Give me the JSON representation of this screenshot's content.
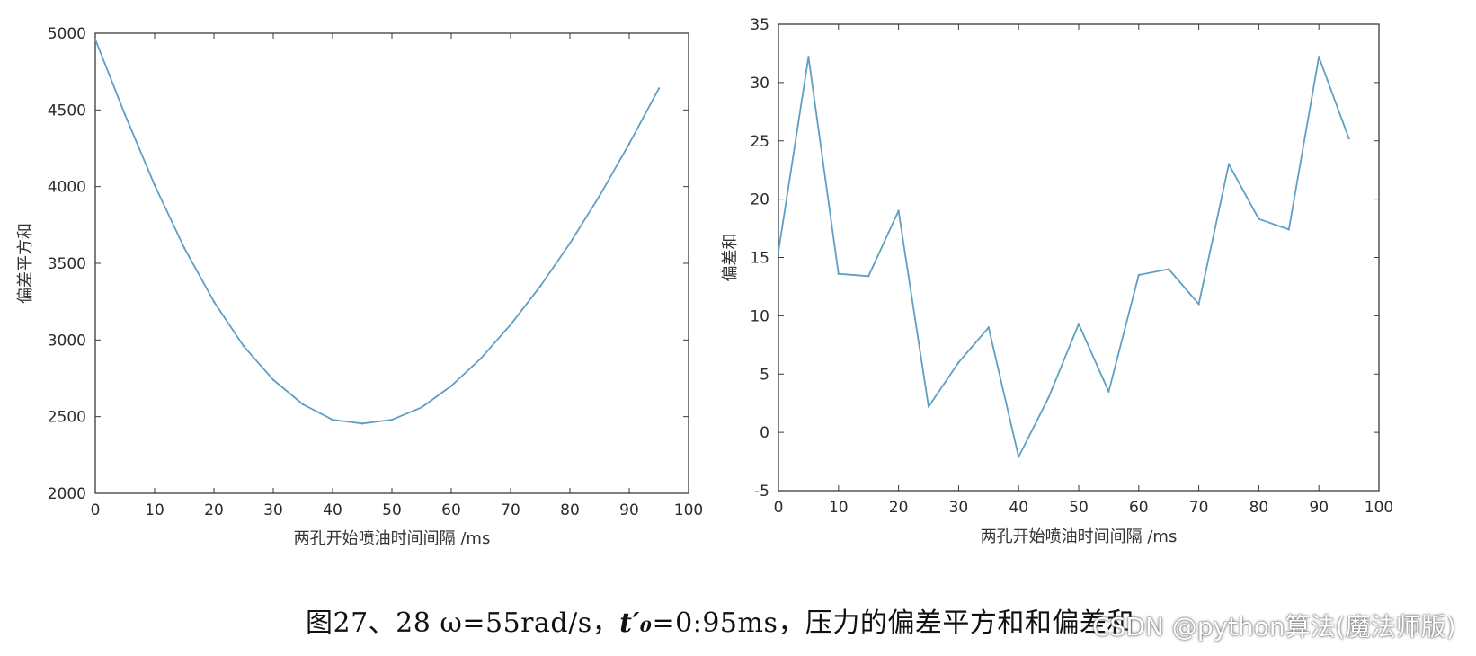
{
  "chart_data": [
    {
      "type": "line",
      "title": "",
      "xlabel": "两孔开始喷油时间间隔 /ms",
      "ylabel": "偏差平方和",
      "xlim": [
        0,
        100
      ],
      "ylim": [
        2000,
        5000
      ],
      "xticks": [
        "0",
        "10",
        "20",
        "30",
        "40",
        "50",
        "60",
        "70",
        "80",
        "90",
        "100"
      ],
      "yticks": [
        "2000",
        "2500",
        "3000",
        "3500",
        "4000",
        "4500",
        "5000"
      ],
      "grid": false,
      "line_color": "#5f9fc4",
      "x": [
        0,
        5,
        10,
        15,
        20,
        25,
        30,
        35,
        40,
        45,
        50,
        55,
        60,
        65,
        70,
        75,
        80,
        85,
        90,
        95
      ],
      "values": [
        4960,
        4470,
        4010,
        3600,
        3250,
        2960,
        2740,
        2580,
        2480,
        2455,
        2480,
        2560,
        2700,
        2880,
        3100,
        3350,
        3630,
        3940,
        4280,
        4640
      ]
    },
    {
      "type": "line",
      "title": "",
      "xlabel": "两孔开始喷油时间间隔 /ms",
      "ylabel": "偏差和",
      "xlim": [
        0,
        100
      ],
      "ylim": [
        -5,
        35
      ],
      "xticks": [
        "0",
        "10",
        "20",
        "30",
        "40",
        "50",
        "60",
        "70",
        "80",
        "90",
        "100"
      ],
      "yticks": [
        "-5",
        "0",
        "5",
        "10",
        "15",
        "20",
        "25",
        "30",
        "35"
      ],
      "grid": false,
      "line_color": "#5f9fc4",
      "x": [
        0,
        5,
        10,
        15,
        20,
        25,
        30,
        35,
        40,
        45,
        50,
        55,
        60,
        65,
        70,
        75,
        80,
        85,
        90,
        95
      ],
      "values": [
        15.5,
        32.2,
        13.6,
        13.4,
        19.0,
        2.2,
        6.0,
        9.0,
        -2.1,
        3.0,
        9.3,
        3.5,
        13.5,
        14.0,
        11.0,
        23.0,
        18.3,
        17.4,
        32.2,
        25.2
      ]
    }
  ],
  "caption": {
    "prefix": "图27、28 ω=55rad/s，",
    "t_symbol": "t′₀",
    "suffix": "=0:95ms，压力的偏差平方和和偏差和"
  },
  "watermark": "CSDN @python算法(魔法师版)"
}
